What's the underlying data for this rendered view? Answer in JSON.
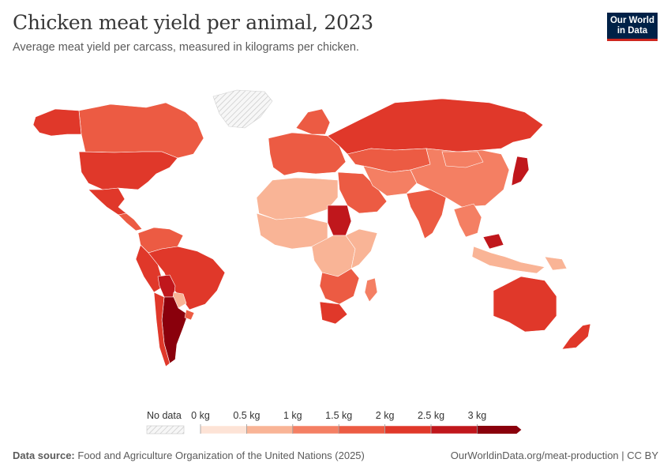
{
  "header": {
    "title": "Chicken meat yield per animal, 2023",
    "subtitle": "Average meat yield per carcass, measured in kilograms per chicken."
  },
  "logo": {
    "line1": "Our World",
    "line2": "in Data"
  },
  "legend": {
    "no_data_label": "No data",
    "tick_labels": [
      "0 kg",
      "0.5 kg",
      "1 kg",
      "1.5 kg",
      "2 kg",
      "2.5 kg",
      "3 kg"
    ],
    "colors": [
      "#fde3d6",
      "#f9b496",
      "#f47f63",
      "#ec5b43",
      "#e0382a",
      "#c0171c",
      "#8a000c"
    ]
  },
  "footer": {
    "source_label": "Data source:",
    "source_text": "Food and Agriculture Organization of the United Nations (2025)",
    "url": "OurWorldinData.org/meat-production | CC BY"
  },
  "map_data": {
    "regions": [
      {
        "name": "Canada",
        "bucket": 3
      },
      {
        "name": "Alaska",
        "bucket": 4
      },
      {
        "name": "Greenland",
        "bucket": -1
      },
      {
        "name": "United States",
        "bucket": 4
      },
      {
        "name": "Mexico",
        "bucket": 4
      },
      {
        "name": "Central America",
        "bucket": 3
      },
      {
        "name": "Colombia & Venezuela",
        "bucket": 3
      },
      {
        "name": "Peru",
        "bucket": 4
      },
      {
        "name": "Brazil",
        "bucket": 4
      },
      {
        "name": "Bolivia",
        "bucket": 5
      },
      {
        "name": "Paraguay",
        "bucket": 1
      },
      {
        "name": "Argentina",
        "bucket": 6
      },
      {
        "name": "Chile",
        "bucket": 4
      },
      {
        "name": "Uruguay",
        "bucket": 3
      },
      {
        "name": "Europe",
        "bucket": 3
      },
      {
        "name": "Scandinavia",
        "bucket": 3
      },
      {
        "name": "Russia",
        "bucket": 4
      },
      {
        "name": "Central Asia",
        "bucket": 3
      },
      {
        "name": "North Africa",
        "bucket": 1
      },
      {
        "name": "Sudan",
        "bucket": 5
      },
      {
        "name": "Middle East",
        "bucket": 3
      },
      {
        "name": "Iran & Afghanistan",
        "bucket": 2
      },
      {
        "name": "India",
        "bucket": 3
      },
      {
        "name": "China",
        "bucket": 2
      },
      {
        "name": "Mongolia",
        "bucket": 2
      },
      {
        "name": "Japan",
        "bucket": 5
      },
      {
        "name": "Southeast Asia",
        "bucket": 2
      },
      {
        "name": "Malaysia",
        "bucket": 5
      },
      {
        "name": "Indonesia",
        "bucket": 1
      },
      {
        "name": "West Africa",
        "bucket": 1
      },
      {
        "name": "Central Africa",
        "bucket": 1
      },
      {
        "name": "East Africa",
        "bucket": 1
      },
      {
        "name": "Southern Africa",
        "bucket": 3
      },
      {
        "name": "South Africa",
        "bucket": 4
      },
      {
        "name": "Madagascar",
        "bucket": 2
      },
      {
        "name": "Australia",
        "bucket": 4
      },
      {
        "name": "New Zealand",
        "bucket": 4
      },
      {
        "name": "Papua New Guinea",
        "bucket": 1
      }
    ]
  }
}
